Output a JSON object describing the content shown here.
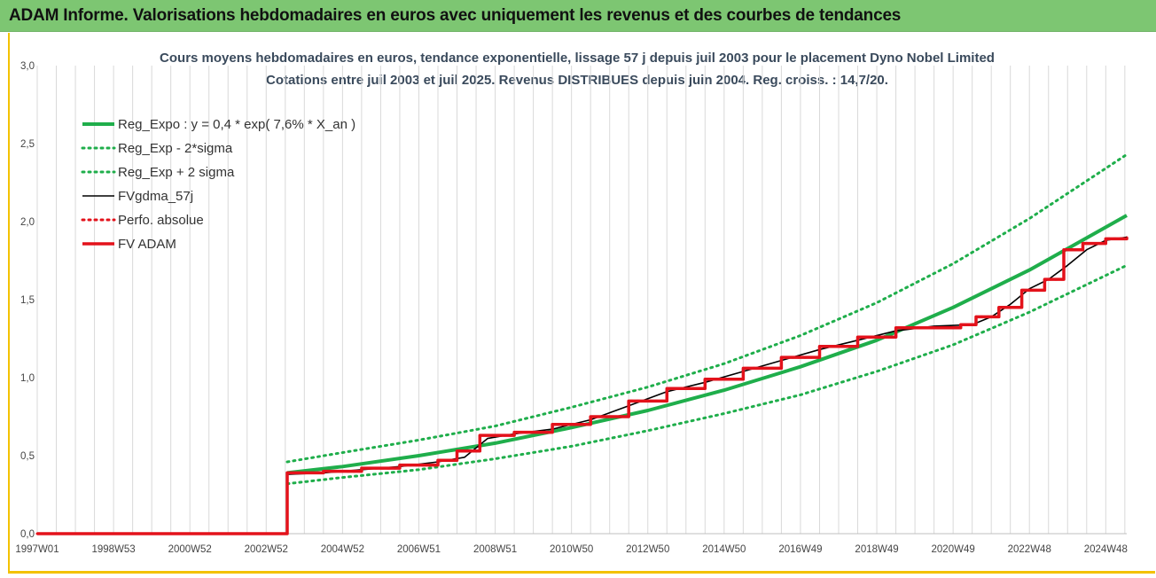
{
  "banner": {
    "title": "ADAM Informe. Valorisations hebdomadaires en euros avec uniquement les revenus et des courbes de tendances"
  },
  "colors": {
    "green": "#1fae4b",
    "red": "#e3121b",
    "black": "#000000",
    "banner": "#7dc672",
    "grid": "#d9d9d9",
    "frame": "#f3c200"
  },
  "chart_data": {
    "type": "line",
    "title_lines": [
      "Cours moyens hebdomadaires en euros, tendance exponentielle, lissage 57 j depuis juil 2003 pour le placement Dyno Nobel Limited",
      "Cotations entre juil 2003 et juil 2025. Revenus DISTRIBUES depuis juin 2004. Reg. croiss. : 14,7/20."
    ],
    "xlim": [
      1997.0,
      2025.55
    ],
    "ylim": [
      0,
      3.0
    ],
    "yticks": [
      "0,0",
      "0,5",
      "1,0",
      "1,5",
      "2,0",
      "2,5",
      "3,0"
    ],
    "ytick_values": [
      0,
      0.5,
      1.0,
      1.5,
      2.0,
      2.5,
      3.0
    ],
    "xticks": [
      {
        "label": "1997W01",
        "x": 1997.0
      },
      {
        "label": "1998W53",
        "x": 1999.0
      },
      {
        "label": "2000W52",
        "x": 2001.0
      },
      {
        "label": "2002W52",
        "x": 2003.0
      },
      {
        "label": "2004W52",
        "x": 2005.0
      },
      {
        "label": "2006W51",
        "x": 2007.0
      },
      {
        "label": "2008W51",
        "x": 2009.0
      },
      {
        "label": "2010W50",
        "x": 2011.0
      },
      {
        "label": "2012W50",
        "x": 2013.0
      },
      {
        "label": "2014W50",
        "x": 2015.0
      },
      {
        "label": "2016W49",
        "x": 2017.0
      },
      {
        "label": "2018W49",
        "x": 2019.0
      },
      {
        "label": "2020W49",
        "x": 2021.0
      },
      {
        "label": "2022W48",
        "x": 2023.0
      },
      {
        "label": "2024W48",
        "x": 2025.0
      }
    ],
    "grid": "vertical",
    "legend_position": "top-left",
    "series": [
      {
        "name": "Reg_Expo : y = 0,4 * exp( 7,6% *  X_an )",
        "style": "solid-thick",
        "color": "#1fae4b",
        "x": [
          2003.55,
          2005,
          2007,
          2009,
          2011,
          2013,
          2015,
          2017,
          2019,
          2021,
          2023,
          2025.55
        ],
        "y": [
          0.39,
          0.43,
          0.5,
          0.58,
          0.68,
          0.79,
          0.92,
          1.07,
          1.24,
          1.45,
          1.69,
          2.04
        ]
      },
      {
        "name": "Reg_Exp - 2*sigma",
        "style": "dotted",
        "color": "#1fae4b",
        "x": [
          2003.55,
          2005,
          2007,
          2009,
          2011,
          2013,
          2015,
          2017,
          2019,
          2021,
          2023,
          2025.55
        ],
        "y": [
          0.32,
          0.36,
          0.41,
          0.48,
          0.56,
          0.66,
          0.77,
          0.89,
          1.04,
          1.21,
          1.42,
          1.72
        ]
      },
      {
        "name": "Reg_Exp + 2 sigma",
        "style": "dotted",
        "color": "#1fae4b",
        "x": [
          2003.55,
          2005,
          2007,
          2009,
          2011,
          2013,
          2015,
          2017,
          2019,
          2021,
          2023,
          2025.55
        ],
        "y": [
          0.46,
          0.52,
          0.6,
          0.69,
          0.81,
          0.94,
          1.09,
          1.27,
          1.48,
          1.73,
          2.02,
          2.43
        ]
      },
      {
        "name": "FVgdma_57j",
        "style": "solid-thin",
        "color": "#000000",
        "x": [
          2003.55,
          2004.5,
          2005.5,
          2006.5,
          2007.5,
          2008.2,
          2008.8,
          2009.5,
          2010.5,
          2011.5,
          2012.5,
          2013.5,
          2014.5,
          2015.5,
          2016.5,
          2017.5,
          2018.5,
          2019.5,
          2020.5,
          2021.5,
          2022.0,
          2022.5,
          2023.0,
          2023.5,
          2024.0,
          2024.5,
          2025.0,
          2025.55
        ],
        "y": [
          0.38,
          0.39,
          0.41,
          0.43,
          0.46,
          0.49,
          0.61,
          0.64,
          0.67,
          0.73,
          0.82,
          0.91,
          0.97,
          1.04,
          1.11,
          1.18,
          1.24,
          1.3,
          1.33,
          1.34,
          1.39,
          1.47,
          1.57,
          1.63,
          1.72,
          1.82,
          1.88,
          1.9
        ]
      },
      {
        "name": "Perfo. absolue",
        "style": "dotted",
        "color": "#e3121b",
        "x": [
          1997.0,
          2003.55,
          2003.55,
          2004.5,
          2005.5,
          2006.5,
          2007.5,
          2008.0,
          2008.6,
          2009.5,
          2010.5,
          2011.5,
          2012.5,
          2013.5,
          2014.5,
          2015.5,
          2016.5,
          2017.5,
          2018.5,
          2019.5,
          2021.2,
          2021.6,
          2022.2,
          2022.8,
          2023.4,
          2023.9,
          2024.4,
          2025.0,
          2025.55
        ],
        "y": [
          0.0,
          0.0,
          0.39,
          0.4,
          0.42,
          0.44,
          0.47,
          0.53,
          0.63,
          0.65,
          0.7,
          0.75,
          0.85,
          0.93,
          0.99,
          1.06,
          1.13,
          1.2,
          1.26,
          1.32,
          1.34,
          1.39,
          1.45,
          1.56,
          1.63,
          1.82,
          1.86,
          1.89,
          1.9
        ]
      },
      {
        "name": "FV ADAM",
        "style": "step-thick",
        "color": "#e3121b",
        "x": [
          1997.0,
          2003.55,
          2003.55,
          2004.5,
          2005.5,
          2006.5,
          2007.5,
          2008.0,
          2008.6,
          2009.5,
          2010.5,
          2011.5,
          2012.5,
          2013.5,
          2014.5,
          2015.5,
          2016.5,
          2017.5,
          2018.5,
          2019.5,
          2021.2,
          2021.6,
          2022.2,
          2022.8,
          2023.4,
          2023.9,
          2024.4,
          2025.0,
          2025.55
        ],
        "y": [
          0.0,
          0.0,
          0.39,
          0.4,
          0.42,
          0.44,
          0.47,
          0.53,
          0.63,
          0.65,
          0.7,
          0.75,
          0.85,
          0.93,
          0.99,
          1.06,
          1.13,
          1.2,
          1.26,
          1.32,
          1.34,
          1.39,
          1.45,
          1.56,
          1.63,
          1.82,
          1.86,
          1.89,
          1.9
        ]
      }
    ]
  }
}
